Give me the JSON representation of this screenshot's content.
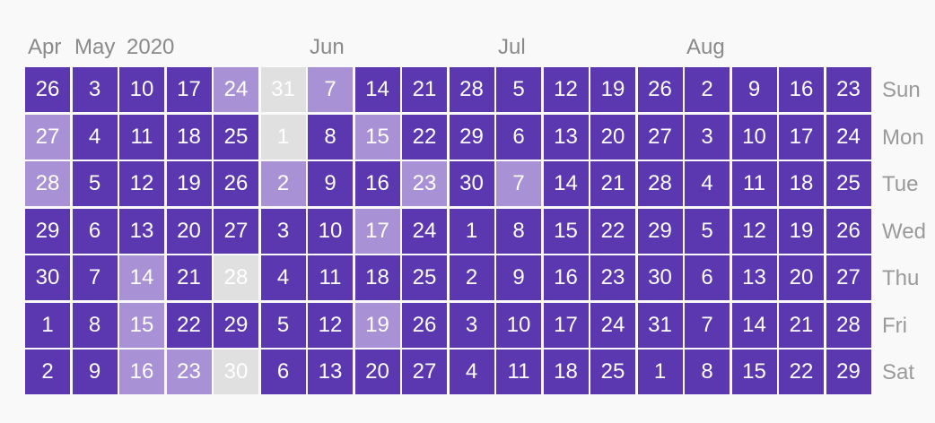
{
  "months": [
    {
      "key": "apr",
      "label": "Apr"
    },
    {
      "key": "may",
      "label": "May"
    },
    {
      "key": "year",
      "label": "2020"
    },
    {
      "key": "jun",
      "label": "Jun"
    },
    {
      "key": "jul",
      "label": "Jul"
    },
    {
      "key": "aug",
      "label": "Aug"
    }
  ],
  "weekdays": [
    "Sun",
    "Mon",
    "Tue",
    "Wed",
    "Thu",
    "Fri",
    "Sat"
  ],
  "colors": {
    "high": "#5b37b0",
    "medium": "#a891d4",
    "none": "#e0e0e0",
    "background": "#f9f9f9",
    "label": "#8a8a8a"
  },
  "chart_data": {
    "type": "heatmap",
    "layout": "weeks-as-columns, weekdays-as-rows",
    "weeks": [
      {
        "days": [
          "26",
          "27",
          "28",
          "29",
          "30",
          "1",
          "2"
        ],
        "levels": [
          "high",
          "medium",
          "medium",
          "high",
          "high",
          "high",
          "high"
        ]
      },
      {
        "days": [
          "3",
          "4",
          "5",
          "6",
          "7",
          "8",
          "9"
        ],
        "levels": [
          "high",
          "high",
          "high",
          "high",
          "high",
          "high",
          "high"
        ]
      },
      {
        "days": [
          "10",
          "11",
          "12",
          "13",
          "14",
          "15",
          "16"
        ],
        "levels": [
          "high",
          "high",
          "high",
          "high",
          "medium",
          "medium",
          "medium"
        ]
      },
      {
        "days": [
          "17",
          "18",
          "19",
          "20",
          "21",
          "22",
          "23"
        ],
        "levels": [
          "high",
          "high",
          "high",
          "high",
          "high",
          "high",
          "medium"
        ]
      },
      {
        "days": [
          "24",
          "25",
          "26",
          "27",
          "28",
          "29",
          "30"
        ],
        "levels": [
          "medium",
          "high",
          "high",
          "high",
          "none",
          "high",
          "none"
        ]
      },
      {
        "days": [
          "31",
          "1",
          "2",
          "3",
          "4",
          "5",
          "6"
        ],
        "levels": [
          "none",
          "none",
          "medium",
          "high",
          "high",
          "high",
          "high"
        ]
      },
      {
        "days": [
          "7",
          "8",
          "9",
          "10",
          "11",
          "12",
          "13"
        ],
        "levels": [
          "medium",
          "high",
          "high",
          "high",
          "high",
          "high",
          "high"
        ]
      },
      {
        "days": [
          "14",
          "15",
          "16",
          "17",
          "18",
          "19",
          "20"
        ],
        "levels": [
          "high",
          "medium",
          "high",
          "medium",
          "high",
          "medium",
          "high"
        ]
      },
      {
        "days": [
          "21",
          "22",
          "23",
          "24",
          "25",
          "26",
          "27"
        ],
        "levels": [
          "high",
          "high",
          "medium",
          "high",
          "high",
          "high",
          "high"
        ]
      },
      {
        "days": [
          "28",
          "29",
          "30",
          "1",
          "2",
          "3",
          "4"
        ],
        "levels": [
          "high",
          "high",
          "high",
          "high",
          "high",
          "high",
          "high"
        ]
      },
      {
        "days": [
          "5",
          "6",
          "7",
          "8",
          "9",
          "10",
          "11"
        ],
        "levels": [
          "high",
          "high",
          "medium",
          "high",
          "high",
          "high",
          "high"
        ]
      },
      {
        "days": [
          "12",
          "13",
          "14",
          "15",
          "16",
          "17",
          "18"
        ],
        "levels": [
          "high",
          "high",
          "high",
          "high",
          "high",
          "high",
          "high"
        ]
      },
      {
        "days": [
          "19",
          "20",
          "21",
          "22",
          "23",
          "24",
          "25"
        ],
        "levels": [
          "high",
          "high",
          "high",
          "high",
          "high",
          "high",
          "high"
        ]
      },
      {
        "days": [
          "26",
          "27",
          "28",
          "29",
          "30",
          "31",
          "1"
        ],
        "levels": [
          "high",
          "high",
          "high",
          "high",
          "high",
          "high",
          "high"
        ]
      },
      {
        "days": [
          "2",
          "3",
          "4",
          "5",
          "6",
          "7",
          "8"
        ],
        "levels": [
          "high",
          "high",
          "high",
          "high",
          "high",
          "high",
          "high"
        ]
      },
      {
        "days": [
          "9",
          "10",
          "11",
          "12",
          "13",
          "14",
          "15"
        ],
        "levels": [
          "high",
          "high",
          "high",
          "high",
          "high",
          "high",
          "high"
        ]
      },
      {
        "days": [
          "16",
          "17",
          "18",
          "19",
          "20",
          "21",
          "22"
        ],
        "levels": [
          "high",
          "high",
          "high",
          "high",
          "high",
          "high",
          "high"
        ]
      },
      {
        "days": [
          "23",
          "24",
          "25",
          "26",
          "27",
          "28",
          "29"
        ],
        "levels": [
          "high",
          "high",
          "high",
          "high",
          "high",
          "high",
          "high"
        ]
      }
    ]
  }
}
